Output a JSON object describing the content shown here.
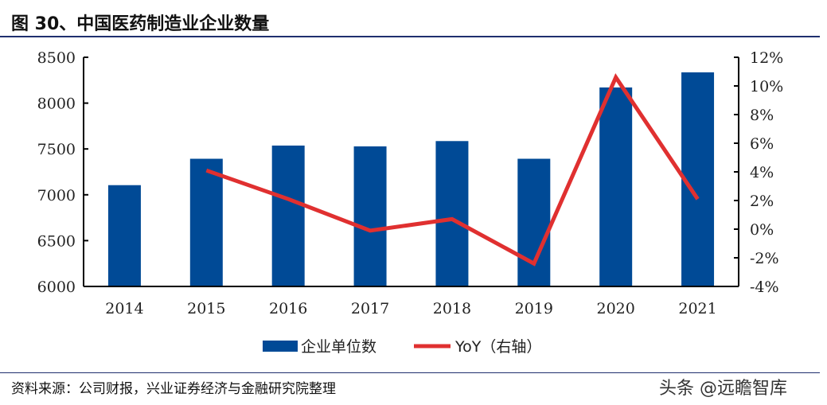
{
  "title": "图 30、中国医药制造业企业数量",
  "source": "资料来源：公司财报，兴业证券经济与金融研究院整理",
  "watermark": "头条 @远瞻智库",
  "chart_data": {
    "type": "bar+line",
    "categories": [
      "2014",
      "2015",
      "2016",
      "2017",
      "2018",
      "2019",
      "2020",
      "2021"
    ],
    "series": [
      {
        "name": "企业单位数",
        "type": "bar",
        "axis": "left",
        "color": "#004a96",
        "values": [
          7105,
          7393,
          7537,
          7528,
          7586,
          7393,
          8171,
          8336
        ]
      },
      {
        "name": "YoY（右轴）",
        "type": "line",
        "axis": "right",
        "color": "#e03030",
        "values": [
          null,
          4.1,
          2.1,
          -0.1,
          0.7,
          -2.4,
          10.6,
          2.1
        ]
      }
    ],
    "left_axis": {
      "ylim": [
        6000,
        8500
      ],
      "ticks": [
        "6000",
        "6500",
        "7000",
        "7500",
        "8000",
        "8500"
      ]
    },
    "right_axis": {
      "ylim": [
        -4,
        12
      ],
      "ticks": [
        "-4%",
        "-2%",
        "0%",
        "2%",
        "4%",
        "6%",
        "8%",
        "10%",
        "12%"
      ]
    },
    "grid": false,
    "legend": "bottom"
  }
}
